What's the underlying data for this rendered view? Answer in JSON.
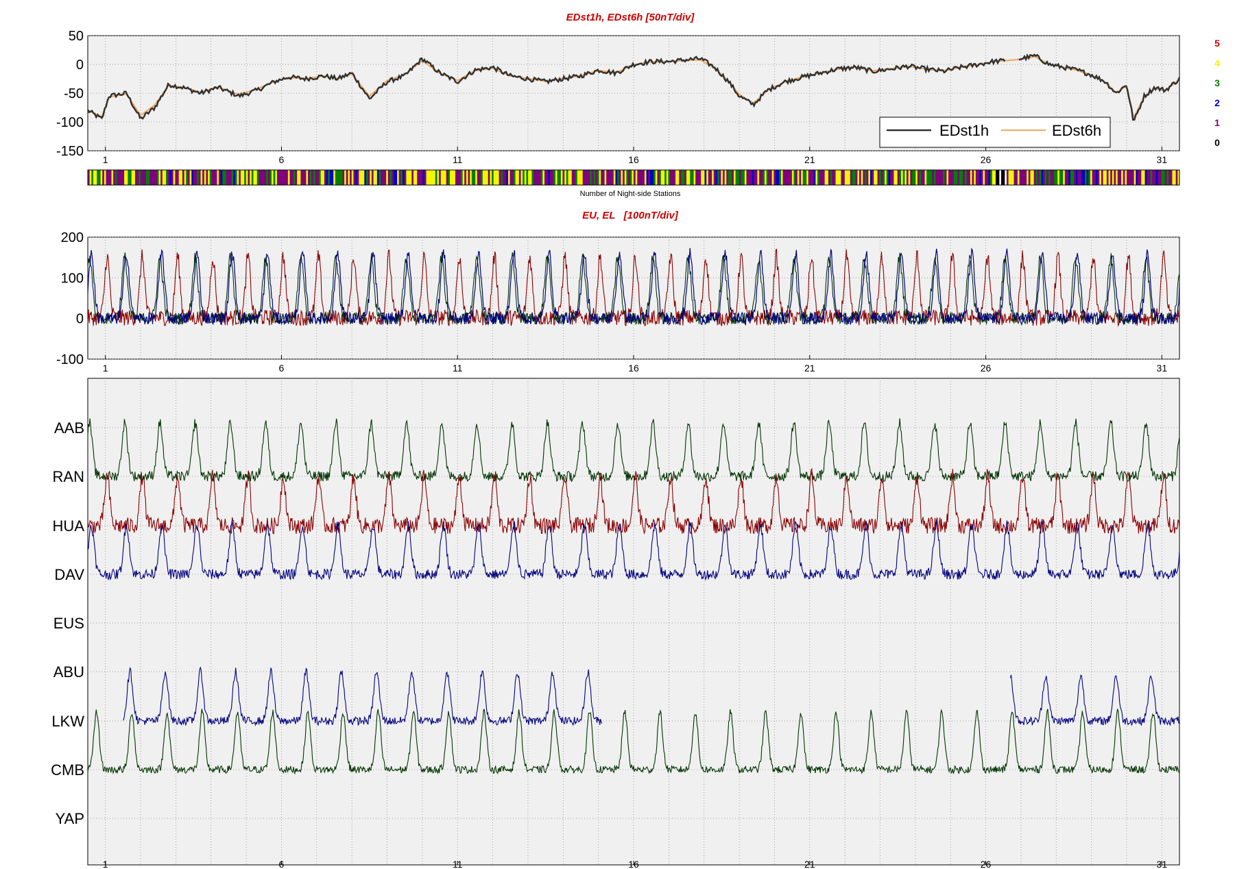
{
  "colors": {
    "panel_bg": "#f0f0f0",
    "title": "#cc0000",
    "edst1h": "#303030",
    "edst6h": "#f0a860",
    "red_trace": "#8b0000",
    "blue_trace": "#000080",
    "green_trace": "#003300",
    "dark_blue_trace": "#102050",
    "grid": "#8a8a8a"
  },
  "chart_data": [
    {
      "type": "line",
      "title": "EDst1h, EDst6h [50nT/div]",
      "x_ticks": [
        "1",
        "6",
        "11",
        "16",
        "21",
        "26",
        "31"
      ],
      "xlim": [
        0.5,
        31.5
      ],
      "ylim": [
        -150,
        50
      ],
      "y_ticks": [
        "50",
        "0",
        "-50",
        "-100",
        "-150"
      ],
      "grid": true,
      "legend": {
        "position": "bottom-right",
        "entries": [
          "EDst1h",
          "EDst6h"
        ]
      },
      "series": [
        {
          "name": "EDst1h",
          "x": [
            0.5,
            0.9,
            1.1,
            1.6,
            2.0,
            2.4,
            2.8,
            3.2,
            3.7,
            4.2,
            4.8,
            5.3,
            5.8,
            6.2,
            6.7,
            7.2,
            7.6,
            8.0,
            8.5,
            9.0,
            9.5,
            10.0,
            10.5,
            11.0,
            11.5,
            12.0,
            12.5,
            13.0,
            13.5,
            14.0,
            14.5,
            15.0,
            15.5,
            16.0,
            16.5,
            17.0,
            17.5,
            17.9,
            18.3,
            18.7,
            19.0,
            19.4,
            19.8,
            20.3,
            20.8,
            21.3,
            21.8,
            22.3,
            22.8,
            23.3,
            23.8,
            24.3,
            24.8,
            25.3,
            25.8,
            26.2,
            26.8,
            27.0,
            27.4,
            27.8,
            28.2,
            28.6,
            29.0,
            29.4,
            29.7,
            30.0,
            30.2,
            30.5,
            30.8,
            31.1,
            31.5
          ],
          "y": [
            -80,
            -95,
            -55,
            -50,
            -95,
            -75,
            -35,
            -40,
            -50,
            -40,
            -55,
            -45,
            -30,
            -22,
            -25,
            -20,
            -25,
            -15,
            -60,
            -30,
            -20,
            10,
            -15,
            -30,
            -10,
            -5,
            -20,
            -25,
            -30,
            -25,
            -20,
            -10,
            -15,
            0,
            5,
            5,
            8,
            10,
            -5,
            -30,
            -55,
            -70,
            -45,
            -30,
            -22,
            -15,
            -8,
            -5,
            -12,
            -8,
            -3,
            -8,
            -12,
            -5,
            0,
            5,
            8,
            10,
            15,
            0,
            -5,
            -10,
            -18,
            -30,
            -50,
            -35,
            -100,
            -55,
            -40,
            -45,
            -25
          ]
        },
        {
          "name": "EDst6h",
          "x": [
            0.5,
            1.5,
            2.5,
            3.5,
            4.5,
            5.5,
            6.5,
            7.5,
            8.5,
            9.5,
            10.5,
            11.5,
            12.5,
            13.5,
            14.5,
            15.5,
            16.5,
            17.5,
            18.5,
            19.5,
            20.5,
            21.5,
            22.5,
            23.5,
            24.5,
            25.5,
            26.5,
            27.5,
            28.5,
            29.5,
            30.5,
            31.5
          ],
          "y": [
            -75,
            -60,
            -45,
            -38,
            -40,
            -30,
            -24,
            -20,
            -30,
            -5,
            -18,
            -15,
            -20,
            -25,
            -18,
            -10,
            2,
            5,
            -20,
            -55,
            -25,
            -12,
            -6,
            -5,
            -8,
            -2,
            6,
            5,
            -10,
            -40,
            -60,
            -35
          ]
        }
      ]
    },
    {
      "type": "heatmap",
      "xlabel": "Number of Night-side Stations",
      "legend_levels": [
        {
          "label": "5",
          "color": "#cc0000"
        },
        {
          "label": "4",
          "color": "#f5f500"
        },
        {
          "label": "3",
          "color": "#008000"
        },
        {
          "label": "2",
          "color": "#0000cc"
        },
        {
          "label": "1",
          "color": "#800080"
        },
        {
          "label": "0",
          "color": "#000000"
        }
      ]
    },
    {
      "type": "line",
      "title": "EU, EL   [100nT/div]",
      "x_ticks": [
        "1",
        "6",
        "11",
        "16",
        "21",
        "26",
        "31"
      ],
      "xlim": [
        0.5,
        31.5
      ],
      "ylim": [
        -100,
        200
      ],
      "y_ticks": [
        "200",
        "100",
        "0",
        "-100"
      ],
      "grid": true
    },
    {
      "type": "line",
      "x_ticks": [
        "1",
        "6",
        "11",
        "16",
        "21",
        "26",
        "31"
      ],
      "xlim": [
        0.5,
        31.5
      ],
      "grid": true,
      "station_labels": [
        "AAB",
        "RAN",
        "HUA",
        "DAV",
        "EUS",
        "ABU",
        "LKW",
        "CMB",
        "YAP"
      ]
    }
  ]
}
